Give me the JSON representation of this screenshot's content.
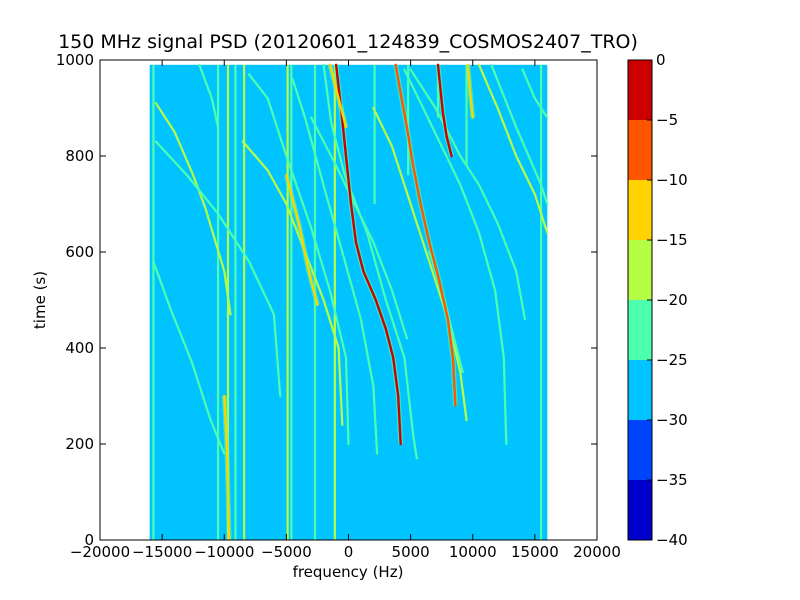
{
  "chart_data": {
    "type": "heatmap",
    "title": "150 MHz signal PSD (20120601_124839_COSMOS2407_TRO)",
    "xlabel": "frequency (Hz)",
    "ylabel": "time (s)",
    "xlim": [
      -20000,
      20000
    ],
    "ylim": [
      0,
      1000
    ],
    "x_ticks": [
      {
        "value": -20000,
        "label": "−20000"
      },
      {
        "value": -15000,
        "label": "−15000"
      },
      {
        "value": -10000,
        "label": "−10000"
      },
      {
        "value": -5000,
        "label": "−5000"
      },
      {
        "value": 0,
        "label": "0"
      },
      {
        "value": 5000,
        "label": "5000"
      },
      {
        "value": 10000,
        "label": "10000"
      },
      {
        "value": 15000,
        "label": "15000"
      },
      {
        "value": 20000,
        "label": "20000"
      }
    ],
    "y_ticks": [
      {
        "value": 0,
        "label": "0"
      },
      {
        "value": 200,
        "label": "200"
      },
      {
        "value": 400,
        "label": "400"
      },
      {
        "value": 600,
        "label": "600"
      },
      {
        "value": 800,
        "label": "800"
      },
      {
        "value": 1000,
        "label": "1000"
      }
    ],
    "data_extent": {
      "x": [
        -16000,
        16000
      ],
      "y": [
        0,
        990
      ]
    },
    "background_level": -27,
    "colorbar": {
      "min": -40,
      "max": 0,
      "levels": [
        {
          "from": -40,
          "to": -35,
          "color": "#0000cc"
        },
        {
          "from": -35,
          "to": -30,
          "color": "#0044ff"
        },
        {
          "from": -30,
          "to": -25,
          "color": "#00c3ff"
        },
        {
          "from": -25,
          "to": -20,
          "color": "#4bffaf"
        },
        {
          "from": -20,
          "to": -15,
          "color": "#b4ff46"
        },
        {
          "from": -15,
          "to": -10,
          "color": "#ffd200"
        },
        {
          "from": -10,
          "to": -5,
          "color": "#ff5500"
        },
        {
          "from": -5,
          "to": 0,
          "color": "#cc0000"
        }
      ],
      "ticks": [
        {
          "value": 0,
          "label": "0"
        },
        {
          "value": -5,
          "label": "−5"
        },
        {
          "value": -10,
          "label": "−10"
        },
        {
          "value": -15,
          "label": "−15"
        },
        {
          "value": -20,
          "label": "−20"
        },
        {
          "value": -25,
          "label": "−25"
        },
        {
          "value": -30,
          "label": "−30"
        },
        {
          "value": -35,
          "label": "−35"
        },
        {
          "value": -40,
          "label": "−40"
        }
      ]
    },
    "vertical_lines": [
      {
        "x": -15700,
        "level": -22,
        "t": [
          0,
          990
        ]
      },
      {
        "x": -10500,
        "level": -22,
        "t": [
          0,
          990
        ]
      },
      {
        "x": -9700,
        "level": -18,
        "t": [
          0,
          990
        ]
      },
      {
        "x": -9100,
        "level": -22,
        "t": [
          0,
          990
        ]
      },
      {
        "x": -8400,
        "level": -18,
        "t": [
          0,
          990
        ]
      },
      {
        "x": -4900,
        "level": -18,
        "t": [
          0,
          990
        ]
      },
      {
        "x": -4600,
        "level": -22,
        "t": [
          0,
          990
        ]
      },
      {
        "x": -2700,
        "level": -22,
        "t": [
          0,
          990
        ]
      },
      {
        "x": -1100,
        "level": -18,
        "t": [
          0,
          990
        ]
      },
      {
        "x": 2100,
        "level": -22,
        "t": [
          700,
          990
        ]
      },
      {
        "x": 4800,
        "level": -22,
        "t": [
          760,
          990
        ]
      },
      {
        "x": 7200,
        "level": -22,
        "t": [
          880,
          990
        ]
      },
      {
        "x": 9500,
        "level": -22,
        "t": [
          780,
          990
        ]
      },
      {
        "x": 15500,
        "level": -22,
        "t": [
          0,
          990
        ]
      }
    ],
    "tracks": [
      {
        "level": -22,
        "points": [
          [
            -15700,
            580
          ],
          [
            -14300,
            480
          ],
          [
            -12600,
            370
          ],
          [
            -11100,
            250
          ],
          [
            -10000,
            180
          ]
        ]
      },
      {
        "level": -18,
        "points": [
          [
            -15500,
            910
          ],
          [
            -14000,
            850
          ],
          [
            -12500,
            760
          ],
          [
            -11500,
            690
          ],
          [
            -10000,
            560
          ],
          [
            -9500,
            470
          ]
        ]
      },
      {
        "level": -22,
        "points": [
          [
            -15500,
            830
          ],
          [
            -13000,
            760
          ],
          [
            -10500,
            680
          ],
          [
            -8000,
            580
          ],
          [
            -6000,
            470
          ],
          [
            -5500,
            300
          ]
        ]
      },
      {
        "level": -18,
        "points": [
          [
            -8500,
            830
          ],
          [
            -6500,
            770
          ],
          [
            -5000,
            700
          ],
          [
            -3500,
            600
          ],
          [
            -2000,
            500
          ],
          [
            -800,
            400
          ],
          [
            -500,
            240
          ]
        ]
      },
      {
        "level": -22,
        "points": [
          [
            -8000,
            970
          ],
          [
            -6500,
            920
          ],
          [
            -5000,
            800
          ],
          [
            -3000,
            650
          ],
          [
            -1500,
            520
          ],
          [
            -200,
            380
          ],
          [
            0,
            200
          ]
        ]
      },
      {
        "level": -22,
        "points": [
          [
            -4500,
            960
          ],
          [
            -3500,
            880
          ],
          [
            -1800,
            720
          ],
          [
            -500,
            600
          ],
          [
            1000,
            460
          ],
          [
            2000,
            320
          ],
          [
            2300,
            180
          ]
        ]
      },
      {
        "level": -22,
        "points": [
          [
            -2000,
            990
          ],
          [
            -1400,
            870
          ],
          [
            -300,
            760
          ],
          [
            1500,
            640
          ],
          [
            3000,
            500
          ],
          [
            4500,
            380
          ],
          [
            5200,
            220
          ],
          [
            5500,
            170
          ]
        ]
      },
      {
        "level": -18,
        "points": [
          [
            2000,
            900
          ],
          [
            3500,
            820
          ],
          [
            5000,
            700
          ],
          [
            6500,
            580
          ],
          [
            8000,
            460
          ],
          [
            9000,
            350
          ],
          [
            9500,
            250
          ]
        ]
      },
      {
        "level": -22,
        "points": [
          [
            4500,
            980
          ],
          [
            6000,
            900
          ],
          [
            7500,
            820
          ],
          [
            9000,
            740
          ],
          [
            10500,
            640
          ],
          [
            11800,
            520
          ],
          [
            12500,
            380
          ],
          [
            12700,
            200
          ]
        ]
      },
      {
        "level": -22,
        "points": [
          [
            5000,
            980
          ],
          [
            7000,
            900
          ],
          [
            9000,
            800
          ],
          [
            10500,
            740
          ],
          [
            12000,
            660
          ],
          [
            13500,
            560
          ],
          [
            14200,
            460
          ]
        ]
      },
      {
        "level": -18,
        "points": [
          [
            10500,
            990
          ],
          [
            12000,
            900
          ],
          [
            13500,
            800
          ],
          [
            15000,
            720
          ],
          [
            16000,
            640
          ]
        ]
      },
      {
        "level": -22,
        "points": [
          [
            14000,
            980
          ],
          [
            15000,
            920
          ],
          [
            16000,
            880
          ]
        ]
      },
      {
        "level": -22,
        "points": [
          [
            11500,
            990
          ],
          [
            13500,
            860
          ],
          [
            15500,
            740
          ],
          [
            16000,
            700
          ]
        ]
      },
      {
        "level": -22,
        "points": [
          [
            -12000,
            990
          ],
          [
            -11000,
            920
          ],
          [
            -10500,
            860
          ]
        ]
      },
      {
        "level": -22,
        "points": [
          [
            6500,
            600
          ],
          [
            7500,
            520
          ],
          [
            8500,
            420
          ],
          [
            9200,
            350
          ]
        ]
      },
      {
        "level": -22,
        "points": [
          [
            -3000,
            880
          ],
          [
            -1000,
            780
          ],
          [
            500,
            700
          ],
          [
            2000,
            620
          ],
          [
            3500,
            520
          ],
          [
            4700,
            420
          ]
        ]
      }
    ],
    "strong_tracks": [
      {
        "level": -3,
        "points": [
          [
            -1000,
            990
          ],
          [
            -600,
            900
          ],
          [
            -200,
            800
          ],
          [
            200,
            700
          ],
          [
            600,
            620
          ],
          [
            1200,
            560
          ],
          [
            2200,
            500
          ],
          [
            3000,
            440
          ],
          [
            3600,
            380
          ],
          [
            4000,
            300
          ],
          [
            4200,
            200
          ]
        ]
      },
      {
        "level": -7,
        "points": [
          [
            3800,
            990
          ],
          [
            4200,
            930
          ],
          [
            4700,
            860
          ],
          [
            5200,
            780
          ],
          [
            5800,
            700
          ],
          [
            6500,
            620
          ],
          [
            7300,
            540
          ],
          [
            8000,
            460
          ],
          [
            8400,
            380
          ],
          [
            8600,
            280
          ]
        ]
      },
      {
        "level": -3,
        "points": [
          [
            7200,
            990
          ],
          [
            7400,
            940
          ],
          [
            7600,
            890
          ],
          [
            7900,
            840
          ],
          [
            8300,
            800
          ]
        ]
      },
      {
        "level": -12,
        "points": [
          [
            -10000,
            300
          ],
          [
            -9800,
            200
          ],
          [
            -9700,
            100
          ],
          [
            -9600,
            0
          ]
        ]
      },
      {
        "level": -12,
        "points": [
          [
            -5000,
            760
          ],
          [
            -4000,
            660
          ],
          [
            -3200,
            560
          ],
          [
            -2500,
            490
          ]
        ]
      },
      {
        "level": -12,
        "points": [
          [
            -1500,
            990
          ],
          [
            -800,
            920
          ],
          [
            -200,
            860
          ]
        ]
      },
      {
        "level": -12,
        "points": [
          [
            9600,
            990
          ],
          [
            9800,
            930
          ],
          [
            10000,
            880
          ]
        ]
      }
    ]
  }
}
